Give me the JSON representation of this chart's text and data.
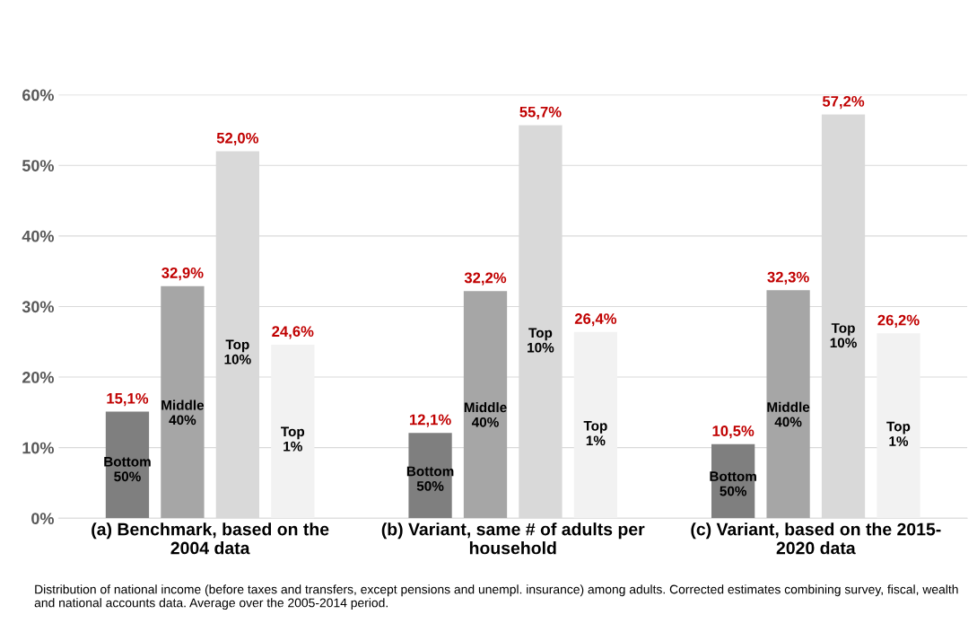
{
  "chart_data": {
    "type": "bar",
    "categories": [
      "(a) Benchmark, based on the\n2004 data",
      "(b) Variant, same # of adults per\nhousehold",
      "(c) Variant, based on the 2015-\n2020 data"
    ],
    "series": [
      {
        "name": "Bottom\n50%",
        "color": "#7f7f7f",
        "values": [
          15.1,
          12.1,
          10.5
        ],
        "value_labels": [
          "15,1%",
          "12,1%",
          "10,5%"
        ]
      },
      {
        "name": "Middle\n40%",
        "color": "#a6a6a6",
        "values": [
          32.9,
          32.2,
          32.3
        ],
        "value_labels": [
          "32,9%",
          "32,2%",
          "32,3%"
        ]
      },
      {
        "name": "Top\n10%",
        "color": "#d9d9d9",
        "values": [
          52.0,
          55.7,
          57.2
        ],
        "value_labels": [
          "52,0%",
          "55,7%",
          "57,2%"
        ]
      },
      {
        "name": "Top\n1%",
        "color": "#f2f2f2",
        "values": [
          24.6,
          26.4,
          26.2
        ],
        "value_labels": [
          "24,6%",
          "26,4%",
          "26,2%"
        ]
      }
    ],
    "ylim": [
      0,
      60
    ],
    "yticks": [
      {
        "value": 0,
        "label": "0%"
      },
      {
        "value": 10,
        "label": "10%"
      },
      {
        "value": 20,
        "label": "20%"
      },
      {
        "value": 30,
        "label": "30%"
      },
      {
        "value": 40,
        "label": "40%"
      },
      {
        "value": 50,
        "label": "50%"
      },
      {
        "value": 60,
        "label": "60%"
      }
    ],
    "grid": "y",
    "legend": false,
    "annotations": [
      "Distribution of national income (before taxes and transfers, except pensions and unempl. insurance) among adults. Corrected estimates combining survey, fiscal, wealth and national accounts data. Average over the 2005-2014 period."
    ]
  }
}
